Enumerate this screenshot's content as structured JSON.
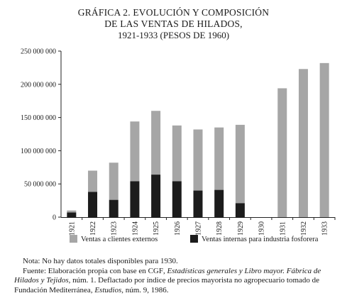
{
  "title": {
    "line1": "GRÁFICA 2. EVOLUCIÓN Y COMPOSICIÓN",
    "line2": "DE LAS VENTAS DE HILADOS,",
    "line3": "1921-1933 (PESOS DE 1960)"
  },
  "colors": {
    "external": "#a6a6a6",
    "internal": "#1c1c1c",
    "axis": "#222222"
  },
  "chart_data": {
    "type": "bar",
    "stacked": true,
    "categories": [
      "1921",
      "1922",
      "1923",
      "1924",
      "1925",
      "1926",
      "1927",
      "1928",
      "1929",
      "1930",
      "1931",
      "1932",
      "1933"
    ],
    "series": [
      {
        "name": "Ventas internas para industria fosforera",
        "key": "internal",
        "values": [
          7000000,
          38000000,
          26000000,
          54000000,
          64000000,
          54000000,
          40000000,
          41000000,
          21000000,
          0,
          0,
          0,
          0
        ]
      },
      {
        "name": "Ventas a clientes externos",
        "key": "external",
        "values": [
          3000000,
          32000000,
          56000000,
          90000000,
          96000000,
          84000000,
          92000000,
          94000000,
          118000000,
          0,
          194000000,
          223000000,
          232000000
        ]
      }
    ],
    "ylim": [
      0,
      250000000
    ],
    "yticks": [
      0,
      50000000,
      100000000,
      150000000,
      200000000,
      250000000
    ],
    "ytick_labels": [
      "0",
      "50 000 000",
      "100 000 000",
      "150 000 000",
      "200 000 000",
      "250 000 000"
    ],
    "legend": [
      {
        "label": "Ventas a clientes externos",
        "key": "external"
      },
      {
        "label": "Ventas internas para industria fosforera",
        "key": "internal"
      }
    ],
    "legend_position": "bottom",
    "grid": false
  },
  "notes": {
    "nota": "Nota: No hay datos totales disponibles para 1930.",
    "fuente_a": "Fuente: Elaboración propia con base en ",
    "fuente_cgf": "CGF",
    "fuente_b": ", ",
    "fuente_c": "Estadísticas generales y Libro mayor. Fábrica de Hilados y Tejidos",
    "fuente_d": ", núm. 1. Deflactado por índice de precios mayorista no agropecuario tomado de Fundación Mediterránea, ",
    "fuente_e": "Estudios",
    "fuente_f": ", núm. 9, 1986."
  }
}
